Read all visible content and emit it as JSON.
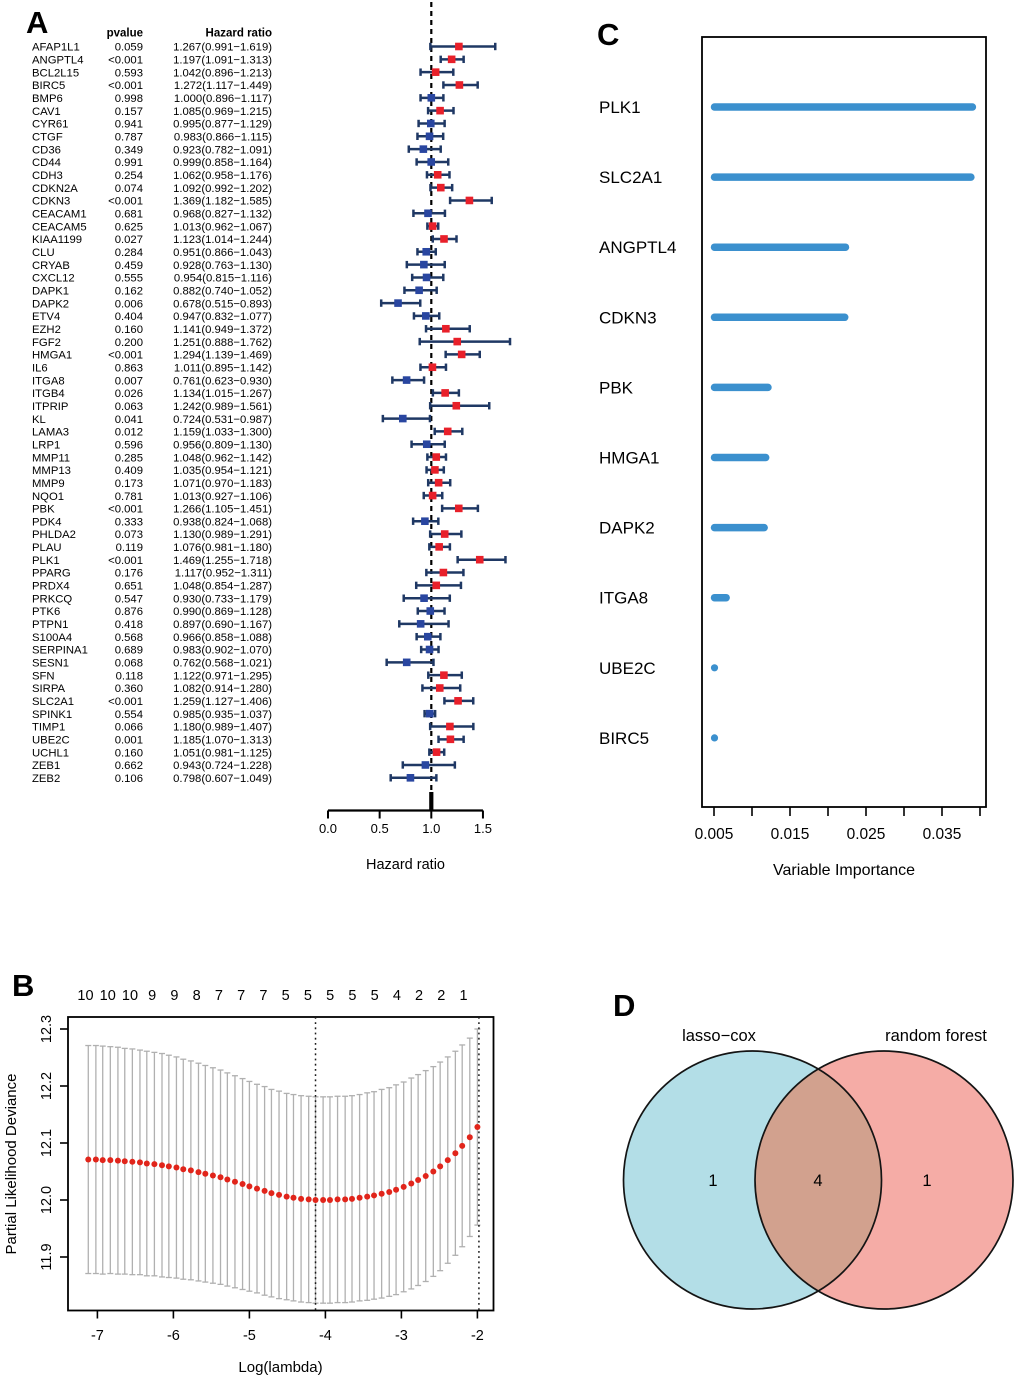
{
  "figure": {
    "background": "#FFFFFF",
    "panels": [
      {
        "letter": "A"
      },
      {
        "letter": "B"
      },
      {
        "letter": "C"
      },
      {
        "letter": "D"
      }
    ]
  },
  "chart_data": [
    {
      "panel": "A",
      "type": "forest",
      "columns": {
        "pvalue": "pvalue",
        "hazard_ratio": "Hazard ratio"
      },
      "xlabel": "Hazard ratio",
      "x_tick_labels": [
        "0.0",
        "0.5",
        "1.0",
        "1.5"
      ],
      "xlim": [
        0.0,
        1.75
      ],
      "reference_line": 1.0,
      "colors": {
        "ci_bar": "#1F3864",
        "risk_box": "#E8202A",
        "protective_box": "#2946A0"
      },
      "rows": [
        {
          "g": "AFAP1L1",
          "p": "0.059",
          "t": "1.267(0.991−1.619)"
        },
        {
          "g": "ANGPTL4",
          "p": "<0.001",
          "t": "1.197(1.091−1.313)"
        },
        {
          "g": "BCL2L15",
          "p": "0.593",
          "t": "1.042(0.896−1.213)"
        },
        {
          "g": "BIRC5",
          "p": "<0.001",
          "t": "1.272(1.117−1.449)"
        },
        {
          "g": "BMP6",
          "p": "0.998",
          "t": "1.000(0.896−1.117)"
        },
        {
          "g": "CAV1",
          "p": "0.157",
          "t": "1.085(0.969−1.215)"
        },
        {
          "g": "CYR61",
          "p": "0.941",
          "t": "0.995(0.877−1.129)"
        },
        {
          "g": "CTGF",
          "p": "0.787",
          "t": "0.983(0.866−1.115)"
        },
        {
          "g": "CD36",
          "p": "0.349",
          "t": "0.923(0.782−1.091)"
        },
        {
          "g": "CD44",
          "p": "0.991",
          "t": "0.999(0.858−1.164)"
        },
        {
          "g": "CDH3",
          "p": "0.254",
          "t": "1.062(0.958−1.176)"
        },
        {
          "g": "CDKN2A",
          "p": "0.074",
          "t": "1.092(0.992−1.202)"
        },
        {
          "g": "CDKN3",
          "p": "<0.001",
          "t": "1.369(1.182−1.585)"
        },
        {
          "g": "CEACAM1",
          "p": "0.681",
          "t": "0.968(0.827−1.132)"
        },
        {
          "g": "CEACAM5",
          "p": "0.625",
          "t": "1.013(0.962−1.067)"
        },
        {
          "g": "KIAA1199",
          "p": "0.027",
          "t": "1.123(1.014−1.244)"
        },
        {
          "g": "CLU",
          "p": "0.284",
          "t": "0.951(0.866−1.043)"
        },
        {
          "g": "CRYAB",
          "p": "0.459",
          "t": "0.928(0.763−1.130)"
        },
        {
          "g": "CXCL12",
          "p": "0.555",
          "t": "0.954(0.815−1.116)"
        },
        {
          "g": "DAPK1",
          "p": "0.162",
          "t": "0.882(0.740−1.052)"
        },
        {
          "g": "DAPK2",
          "p": "0.006",
          "t": "0.678(0.515−0.893)"
        },
        {
          "g": "ETV4",
          "p": "0.404",
          "t": "0.947(0.832−1.077)"
        },
        {
          "g": "EZH2",
          "p": "0.160",
          "t": "1.141(0.949−1.372)"
        },
        {
          "g": "FGF2",
          "p": "0.200",
          "t": "1.251(0.888−1.762)"
        },
        {
          "g": "HMGA1",
          "p": "<0.001",
          "t": "1.294(1.139−1.469)"
        },
        {
          "g": "IL6",
          "p": "0.863",
          "t": "1.011(0.895−1.142)"
        },
        {
          "g": "ITGA8",
          "p": "0.007",
          "t": "0.761(0.623−0.930)"
        },
        {
          "g": "ITGB4",
          "p": "0.026",
          "t": "1.134(1.015−1.267)"
        },
        {
          "g": "ITPRIP",
          "p": "0.063",
          "t": "1.242(0.989−1.561)"
        },
        {
          "g": "KL",
          "p": "0.041",
          "t": "0.724(0.531−0.987)"
        },
        {
          "g": "LAMA3",
          "p": "0.012",
          "t": "1.159(1.033−1.300)"
        },
        {
          "g": "LRP1",
          "p": "0.596",
          "t": "0.956(0.809−1.130)"
        },
        {
          "g": "MMP11",
          "p": "0.285",
          "t": "1.048(0.962−1.142)"
        },
        {
          "g": "MMP13",
          "p": "0.409",
          "t": "1.035(0.954−1.121)"
        },
        {
          "g": "MMP9",
          "p": "0.173",
          "t": "1.071(0.970−1.183)"
        },
        {
          "g": "NQO1",
          "p": "0.781",
          "t": "1.013(0.927−1.106)"
        },
        {
          "g": "PBK",
          "p": "<0.001",
          "t": "1.266(1.105−1.451)"
        },
        {
          "g": "PDK4",
          "p": "0.333",
          "t": "0.938(0.824−1.068)"
        },
        {
          "g": "PHLDA2",
          "p": "0.073",
          "t": "1.130(0.989−1.291)"
        },
        {
          "g": "PLAU",
          "p": "0.119",
          "t": "1.076(0.981−1.180)"
        },
        {
          "g": "PLK1",
          "p": "<0.001",
          "t": "1.469(1.255−1.718)"
        },
        {
          "g": "PPARG",
          "p": "0.176",
          "t": "1.117(0.952−1.311)"
        },
        {
          "g": "PRDX4",
          "p": "0.651",
          "t": "1.048(0.854−1.287)"
        },
        {
          "g": "PRKCQ",
          "p": "0.547",
          "t": "0.930(0.733−1.179)"
        },
        {
          "g": "PTK6",
          "p": "0.876",
          "t": "0.990(0.869−1.128)"
        },
        {
          "g": "PTPN1",
          "p": "0.418",
          "t": "0.897(0.690−1.167)"
        },
        {
          "g": "S100A4",
          "p": "0.568",
          "t": "0.966(0.858−1.088)"
        },
        {
          "g": "SERPINA1",
          "p": "0.689",
          "t": "0.983(0.902−1.070)"
        },
        {
          "g": "SESN1",
          "p": "0.068",
          "t": "0.762(0.568−1.021)"
        },
        {
          "g": "SFN",
          "p": "0.118",
          "t": "1.122(0.971−1.295)"
        },
        {
          "g": "SIRPA",
          "p": "0.360",
          "t": "1.082(0.914−1.280)"
        },
        {
          "g": "SLC2A1",
          "p": "<0.001",
          "t": "1.259(1.127−1.406)"
        },
        {
          "g": "SPINK1",
          "p": "0.554",
          "t": "0.985(0.935−1.037)"
        },
        {
          "g": "TIMP1",
          "p": "0.066",
          "t": "1.180(0.989−1.407)"
        },
        {
          "g": "UBE2C",
          "p": "0.001",
          "t": "1.185(1.070−1.313)"
        },
        {
          "g": "UCHL1",
          "p": "0.160",
          "t": "1.051(0.981−1.125)"
        },
        {
          "g": "ZEB1",
          "p": "0.662",
          "t": "0.943(0.724−1.228)"
        },
        {
          "g": "ZEB2",
          "p": "0.106",
          "t": "0.798(0.607−1.049)"
        }
      ]
    },
    {
      "panel": "B",
      "type": "line",
      "subtype": "cv-errorbar",
      "xlabel": "Log(lambda)",
      "ylabel": "Partial Likelihood Deviance",
      "x_tick_labels": [
        "-7",
        "-6",
        "-5",
        "-4",
        "-3",
        "-2"
      ],
      "y_tick_labels": [
        "11.9",
        "12.0",
        "12.1",
        "12.2",
        "12.3"
      ],
      "top_axis_labels": [
        "10",
        "10",
        "10",
        "9",
        "9",
        "8",
        "7",
        "7",
        "7",
        "5",
        "5",
        "5",
        "5",
        "5",
        "4",
        "2",
        "2",
        "1"
      ],
      "vlines": [
        -4.13,
        -1.98
      ],
      "colors": {
        "point": "#E1251B",
        "errorbar": "#B0B0B0"
      },
      "x": [
        -7.12,
        -7.02,
        -6.93,
        -6.83,
        -6.73,
        -6.64,
        -6.54,
        -6.44,
        -6.35,
        -6.25,
        -6.15,
        -6.06,
        -5.96,
        -5.87,
        -5.77,
        -5.67,
        -5.58,
        -5.48,
        -5.38,
        -5.29,
        -5.19,
        -5.09,
        -5.0,
        -4.9,
        -4.8,
        -4.71,
        -4.61,
        -4.51,
        -4.42,
        -4.32,
        -4.22,
        -4.13,
        -4.03,
        -3.94,
        -3.84,
        -3.74,
        -3.65,
        -3.55,
        -3.45,
        -3.36,
        -3.26,
        -3.16,
        -3.07,
        -2.97,
        -2.87,
        -2.78,
        -2.68,
        -2.58,
        -2.49,
        -2.39,
        -2.29,
        -2.2,
        -2.1,
        -2.0
      ],
      "y": [
        12.071,
        12.071,
        12.07,
        12.07,
        12.069,
        12.068,
        12.067,
        12.066,
        12.064,
        12.063,
        12.061,
        12.059,
        12.057,
        12.054,
        12.052,
        12.049,
        12.046,
        12.043,
        12.04,
        12.036,
        12.032,
        12.028,
        12.024,
        12.02,
        12.016,
        12.012,
        12.009,
        12.006,
        12.004,
        12.002,
        12.001,
        12.0,
        12.0,
        12.0,
        12.001,
        12.001,
        12.002,
        12.004,
        12.006,
        12.008,
        12.011,
        12.014,
        12.018,
        12.023,
        12.029,
        12.035,
        12.042,
        12.05,
        12.059,
        12.07,
        12.082,
        12.095,
        12.11,
        12.128
      ],
      "se": [
        0.2,
        0.2,
        0.2,
        0.199,
        0.199,
        0.198,
        0.198,
        0.197,
        0.197,
        0.196,
        0.196,
        0.195,
        0.194,
        0.193,
        0.192,
        0.191,
        0.19,
        0.189,
        0.188,
        0.187,
        0.186,
        0.185,
        0.184,
        0.183,
        0.183,
        0.182,
        0.182,
        0.181,
        0.181,
        0.181,
        0.181,
        0.181,
        0.181,
        0.181,
        0.181,
        0.181,
        0.181,
        0.181,
        0.182,
        0.182,
        0.183,
        0.183,
        0.184,
        0.184,
        0.185,
        0.185,
        0.185,
        0.184,
        0.183,
        0.181,
        0.179,
        0.177,
        0.174,
        0.172
      ]
    },
    {
      "panel": "C",
      "type": "bar",
      "orientation": "horizontal",
      "xlabel": "Variable Importance",
      "x_tick_labels": [
        "0.005",
        "0.015",
        "0.025",
        "0.035"
      ],
      "xlim": [
        0.0045,
        0.0425
      ],
      "categories": [
        "PLK1",
        "SLC2A1",
        "ANGPTL4",
        "CDKN3",
        "PBK",
        "HMGA1",
        "DAPK2",
        "ITGA8",
        "UBE2C",
        "BIRC5"
      ],
      "values": [
        0.039,
        0.0388,
        0.0223,
        0.0222,
        0.0121,
        0.0118,
        0.0116,
        0.0066,
        0.005,
        0.0049
      ],
      "bar_color": "#3B90CE"
    },
    {
      "panel": "D",
      "type": "venn",
      "sets": [
        {
          "label": "lasso−cox",
          "count": 1,
          "fill": "#B3DEE7"
        },
        {
          "label": "random forest",
          "count": 1,
          "fill": "#F5ACA6"
        }
      ],
      "intersection": {
        "count": 4,
        "fill": "#D2A18E"
      },
      "outline_color": "#141414"
    }
  ]
}
